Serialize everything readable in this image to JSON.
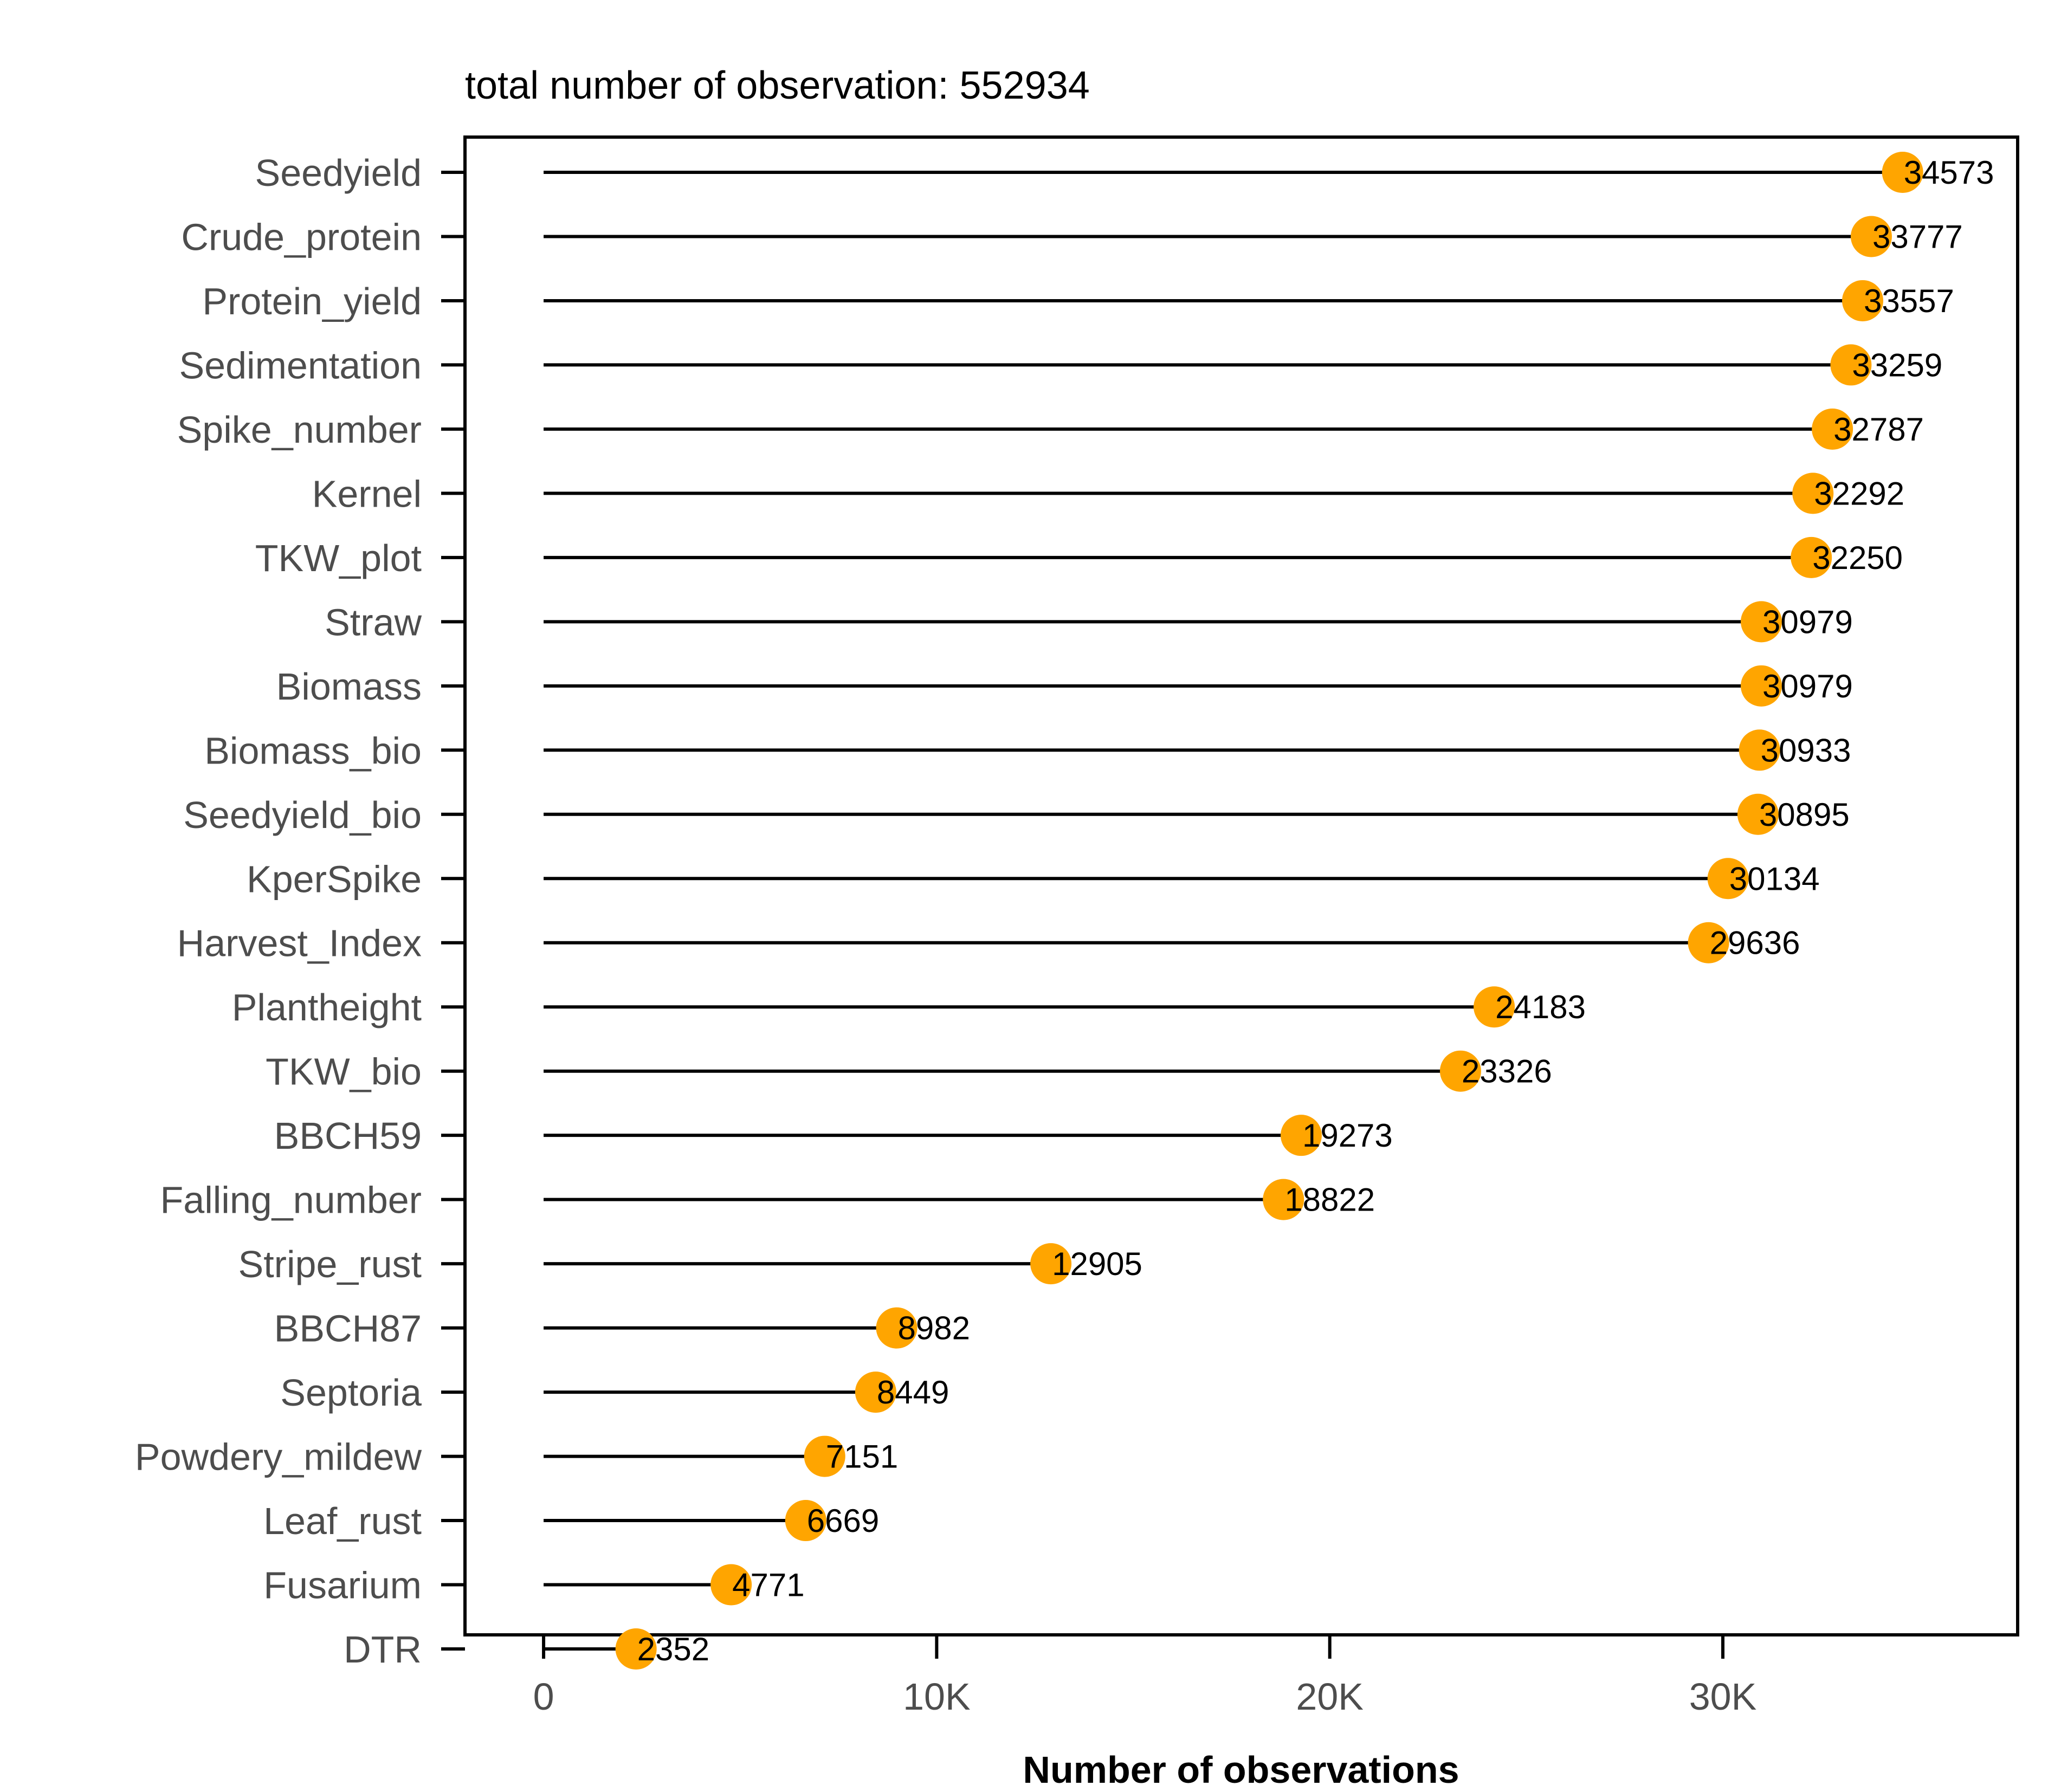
{
  "chart_data": {
    "type": "lollipop",
    "title": "total number of observation: 552934",
    "xlabel": "Number of observations",
    "ylabel": "",
    "xlim": [
      -2000,
      37500
    ],
    "x_ticks": [
      {
        "value": 0,
        "label": "0"
      },
      {
        "value": 10000,
        "label": "10K"
      },
      {
        "value": 20000,
        "label": "20K"
      },
      {
        "value": 30000,
        "label": "30K"
      }
    ],
    "categories": [
      "Seedyield",
      "Crude_protein",
      "Protein_yield",
      "Sedimentation",
      "Spike_number",
      "Kernel",
      "TKW_plot",
      "Straw",
      "Biomass",
      "Biomass_bio",
      "Seedyield_bio",
      "KperSpike",
      "Harvest_Index",
      "Plantheight",
      "TKW_bio",
      "BBCH59",
      "Falling_number",
      "Stripe_rust",
      "BBCH87",
      "Septoria",
      "Powdery_mildew",
      "Leaf_rust",
      "Fusarium",
      "DTR"
    ],
    "values": [
      34573,
      33777,
      33557,
      33259,
      32787,
      32292,
      32250,
      30979,
      30979,
      30933,
      30895,
      30134,
      29636,
      24183,
      23326,
      19273,
      18822,
      12905,
      8982,
      8449,
      7151,
      6669,
      4771,
      2352
    ],
    "value_labels": [
      "34573",
      "33777",
      "33557",
      "33259",
      "32787",
      "32292",
      "32250",
      "30979",
      "30979",
      "30933",
      "30895",
      "30134",
      "29636",
      "24183",
      "23326",
      "19273",
      "18822",
      "12905",
      "8982",
      "8449",
      "7151",
      "6669",
      "4771",
      "2352"
    ],
    "colors": {
      "point": "#FFA500",
      "stem": "#000000",
      "axis": "#000000",
      "label": "#4d4d4d"
    },
    "grid": false,
    "legend": "none"
  }
}
